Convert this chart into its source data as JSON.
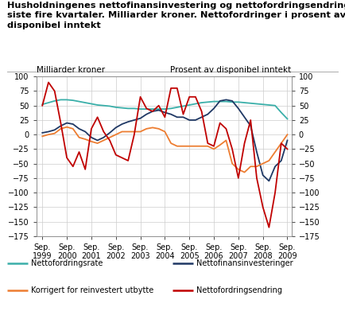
{
  "title": "Husholdningenes nettofinansinvestering og nettofordringsendring\nsiste fire kvartaler. Milliarder kroner. Nettofordringer i prosent av\ndisponibel inntekt",
  "ylabel_left": "Milliarder kroner",
  "ylabel_right": "Prosent av disponibel inntekt",
  "ylim": [
    -175,
    100
  ],
  "yticks": [
    -175,
    -150,
    -125,
    -100,
    -75,
    -50,
    -25,
    0,
    25,
    50,
    75,
    100
  ],
  "x_labels": [
    "Sep.\n1999",
    "Sep.\n2000",
    "Sep.\n2001",
    "Sep.\n2002",
    "Sep.\n2003",
    "Sep.\n2004",
    "Sep.\n2005",
    "Sep.\n2006",
    "Sep.\n2007",
    "Sep.\n2008",
    "Sep.\n2009"
  ],
  "nettofordringsrate": {
    "label": "Nettofordringsrate",
    "color": "#3AAFA9",
    "x": [
      1999.75,
      2000.0,
      2000.25,
      2000.5,
      2000.75,
      2001.0,
      2001.25,
      2001.5,
      2001.75,
      2002.0,
      2002.25,
      2002.5,
      2002.75,
      2003.0,
      2003.25,
      2003.5,
      2003.75,
      2004.0,
      2004.25,
      2004.5,
      2004.75,
      2005.0,
      2005.25,
      2005.5,
      2005.75,
      2006.0,
      2006.25,
      2006.5,
      2006.75,
      2007.0,
      2007.25,
      2007.5,
      2007.75,
      2008.0,
      2008.25,
      2008.5,
      2008.75,
      2009.0,
      2009.25,
      2009.5,
      2009.75
    ],
    "y": [
      52,
      55,
      58,
      60,
      60,
      59,
      57,
      55,
      53,
      51,
      50,
      49,
      47,
      46,
      45,
      45,
      44,
      44,
      44,
      44,
      44,
      45,
      47,
      49,
      51,
      53,
      55,
      56,
      57,
      57,
      57,
      56,
      56,
      55,
      54,
      53,
      52,
      51,
      50,
      38,
      27
    ]
  },
  "nettofinansinvesteringer": {
    "label": "Nettofinansinvesteringer",
    "color": "#1F3864",
    "x": [
      1999.75,
      2000.0,
      2000.25,
      2000.5,
      2000.75,
      2001.0,
      2001.25,
      2001.5,
      2001.75,
      2002.0,
      2002.25,
      2002.5,
      2002.75,
      2003.0,
      2003.25,
      2003.5,
      2003.75,
      2004.0,
      2004.25,
      2004.5,
      2004.75,
      2005.0,
      2005.25,
      2005.5,
      2005.75,
      2006.0,
      2006.25,
      2006.5,
      2006.75,
      2007.0,
      2007.25,
      2007.5,
      2007.75,
      2008.0,
      2008.25,
      2008.5,
      2008.75,
      2009.0,
      2009.25,
      2009.5,
      2009.75
    ],
    "y": [
      3,
      5,
      8,
      15,
      20,
      18,
      10,
      5,
      -5,
      -10,
      -5,
      3,
      12,
      18,
      22,
      25,
      28,
      35,
      40,
      42,
      38,
      35,
      30,
      30,
      25,
      25,
      30,
      35,
      45,
      58,
      60,
      58,
      45,
      30,
      15,
      -30,
      -70,
      -80,
      -55,
      -45,
      -10
    ]
  },
  "korrigert": {
    "label": "Korrigert for reinvestert utbytte",
    "color": "#ED7D31",
    "x": [
      1999.75,
      2000.0,
      2000.25,
      2000.5,
      2000.75,
      2001.0,
      2001.25,
      2001.5,
      2001.75,
      2002.0,
      2002.25,
      2002.5,
      2002.75,
      2003.0,
      2003.25,
      2003.5,
      2003.75,
      2004.0,
      2004.25,
      2004.5,
      2004.75,
      2005.0,
      2005.25,
      2005.5,
      2005.75,
      2006.0,
      2006.25,
      2006.5,
      2006.75,
      2007.0,
      2007.25,
      2007.5,
      2007.75,
      2008.0,
      2008.25,
      2008.5,
      2008.75,
      2009.0,
      2009.25,
      2009.5,
      2009.75
    ],
    "y": [
      -3,
      0,
      2,
      10,
      13,
      10,
      -5,
      -8,
      -12,
      -15,
      -10,
      -5,
      0,
      5,
      5,
      5,
      5,
      10,
      12,
      10,
      5,
      -15,
      -20,
      -20,
      -20,
      -20,
      -20,
      -20,
      -25,
      -18,
      -10,
      -50,
      -60,
      -65,
      -55,
      -55,
      -50,
      -45,
      -30,
      -15,
      0
    ]
  },
  "nettofordringsendring": {
    "label": "Nettofordringsendring",
    "color": "#C00000",
    "x": [
      1999.75,
      2000.0,
      2000.25,
      2000.5,
      2000.75,
      2001.0,
      2001.25,
      2001.5,
      2001.75,
      2002.0,
      2002.25,
      2002.5,
      2002.75,
      2003.0,
      2003.25,
      2003.5,
      2003.75,
      2004.0,
      2004.25,
      2004.5,
      2004.75,
      2005.0,
      2005.25,
      2005.5,
      2005.75,
      2006.0,
      2006.25,
      2006.5,
      2006.75,
      2007.0,
      2007.25,
      2007.5,
      2007.75,
      2008.0,
      2008.25,
      2008.5,
      2008.75,
      2009.0,
      2009.25,
      2009.5,
      2009.75
    ],
    "y": [
      50,
      90,
      75,
      20,
      -40,
      -55,
      -30,
      -60,
      10,
      30,
      5,
      -10,
      -35,
      -40,
      -45,
      0,
      65,
      45,
      40,
      50,
      30,
      80,
      80,
      35,
      65,
      65,
      40,
      -15,
      -20,
      20,
      10,
      -25,
      -75,
      -15,
      25,
      -75,
      -125,
      -160,
      -100,
      -15,
      -25
    ]
  },
  "background_color": "#ffffff",
  "grid_color": "#cccccc",
  "linewidth": 1.3
}
